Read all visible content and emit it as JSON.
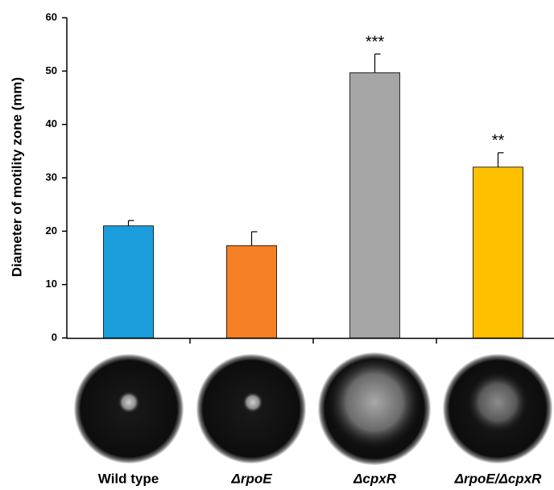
{
  "chart_data": {
    "type": "bar",
    "y_label": "Diameter of motility zone (mm)",
    "categories": [
      "Wild type",
      "ΔrpoE",
      "ΔcpxR",
      "ΔrpoE/ΔcpxR"
    ],
    "values": [
      21,
      17.3,
      49.7,
      32
    ],
    "errors": [
      1,
      2.6,
      3.5,
      2.7
    ],
    "colors": [
      "#1b9ddb",
      "#f58025",
      "#a6a6a6",
      "#ffc000"
    ],
    "annotations": [
      null,
      null,
      "***",
      "**"
    ],
    "ylim": [
      0,
      60
    ],
    "yticks": [
      0,
      10,
      20,
      30,
      40,
      50,
      60
    ],
    "grid": false
  }
}
